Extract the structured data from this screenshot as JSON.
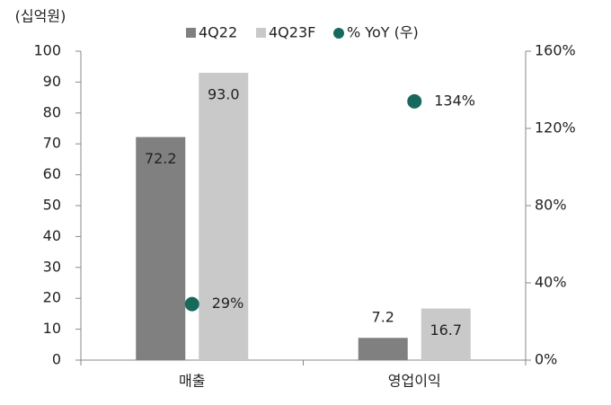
{
  "chart_data": {
    "type": "bar",
    "y_label": "(십억원)",
    "categories": [
      "매출",
      "영업이익"
    ],
    "series": [
      {
        "name": "4Q22",
        "color": "#808080",
        "values": [
          72.2,
          7.2
        ]
      },
      {
        "name": "4Q23F",
        "color": "#c9c9c9",
        "values": [
          93.0,
          16.7
        ],
        "value_labels": [
          "93.0",
          "16.7"
        ]
      },
      {
        "name": "% YoY (우)",
        "color": "#17695e",
        "kind": "scatter",
        "axis": "y2",
        "values": [
          29,
          134
        ],
        "value_labels": [
          "29%",
          "134%"
        ]
      }
    ],
    "ylim": [
      0,
      100
    ],
    "yticks": [
      0,
      10,
      20,
      30,
      40,
      50,
      60,
      70,
      80,
      90,
      100
    ],
    "y2lim": [
      0,
      160
    ],
    "y2ticks": [
      {
        "value": 0,
        "label": "0%"
      },
      {
        "value": 40,
        "label": "40%"
      },
      {
        "value": 80,
        "label": "80%"
      },
      {
        "value": 120,
        "label": "120%"
      },
      {
        "value": 160,
        "label": "160%"
      }
    ],
    "grid": false,
    "legend": "top"
  }
}
